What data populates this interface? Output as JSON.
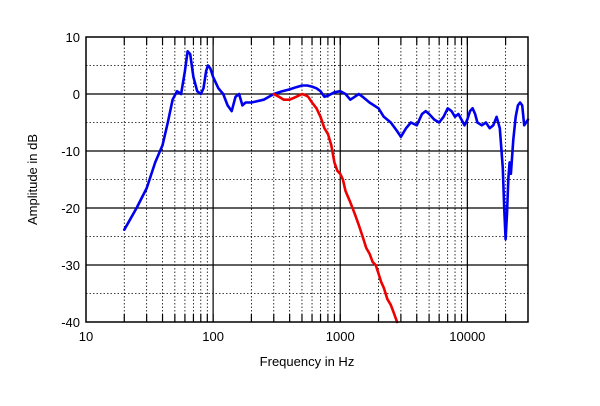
{
  "chart_data": {
    "type": "line",
    "xlabel": "Frequency in Hz",
    "ylabel": "Amplitude in dB",
    "x_scale": "log",
    "xlim": [
      10,
      30000
    ],
    "ylim": [
      -40,
      10
    ],
    "grid": true,
    "x_tick_labels": [
      "10",
      "100",
      "1000",
      "10000"
    ],
    "y_tick_labels": [
      "10",
      "0",
      "-10",
      "-20",
      "-30",
      "-40"
    ],
    "series": [
      {
        "color": "#0000ee",
        "points": [
          [
            20,
            -23.8
          ],
          [
            25,
            -20
          ],
          [
            30,
            -16.5
          ],
          [
            35,
            -12
          ],
          [
            40,
            -9
          ],
          [
            44,
            -5
          ],
          [
            48,
            -1
          ],
          [
            52,
            0.5
          ],
          [
            56,
            0
          ],
          [
            60,
            4
          ],
          [
            63,
            7.5
          ],
          [
            66,
            7
          ],
          [
            70,
            3
          ],
          [
            75,
            0.5
          ],
          [
            80,
            0
          ],
          [
            84,
            1
          ],
          [
            88,
            4
          ],
          [
            91,
            5
          ],
          [
            95,
            4.5
          ],
          [
            100,
            3
          ],
          [
            110,
            1
          ],
          [
            120,
            0
          ],
          [
            130,
            -2
          ],
          [
            140,
            -3
          ],
          [
            150,
            -0.5
          ],
          [
            160,
            0
          ],
          [
            170,
            -2
          ],
          [
            180,
            -1.5
          ],
          [
            200,
            -1.5
          ],
          [
            250,
            -1
          ],
          [
            300,
            0
          ],
          [
            350,
            0.5
          ],
          [
            400,
            0.8
          ],
          [
            450,
            1.2
          ],
          [
            500,
            1.5
          ],
          [
            550,
            1.5
          ],
          [
            600,
            1.3
          ],
          [
            650,
            1
          ],
          [
            700,
            0.5
          ],
          [
            750,
            -0.5
          ],
          [
            800,
            -0.3
          ],
          [
            900,
            0.3
          ],
          [
            1000,
            0.5
          ],
          [
            1100,
            0
          ],
          [
            1200,
            -1
          ],
          [
            1300,
            -0.5
          ],
          [
            1400,
            0
          ],
          [
            1500,
            -0.5
          ],
          [
            1700,
            -1.5
          ],
          [
            2000,
            -2.5
          ],
          [
            2200,
            -4
          ],
          [
            2500,
            -5
          ],
          [
            2800,
            -6.5
          ],
          [
            3000,
            -7.5
          ],
          [
            3300,
            -6
          ],
          [
            3600,
            -5
          ],
          [
            4000,
            -5.5
          ],
          [
            4400,
            -3.5
          ],
          [
            4700,
            -3
          ],
          [
            5000,
            -3.5
          ],
          [
            5500,
            -4.5
          ],
          [
            6000,
            -5
          ],
          [
            6500,
            -4
          ],
          [
            7000,
            -2.5
          ],
          [
            7500,
            -3
          ],
          [
            8000,
            -4
          ],
          [
            8500,
            -3.5
          ],
          [
            9000,
            -4.5
          ],
          [
            9500,
            -5.5
          ],
          [
            10000,
            -4.5
          ],
          [
            10500,
            -3
          ],
          [
            11000,
            -2.5
          ],
          [
            11500,
            -3.5
          ],
          [
            12000,
            -5
          ],
          [
            13000,
            -5.5
          ],
          [
            14000,
            -5
          ],
          [
            15000,
            -6
          ],
          [
            16000,
            -5.5
          ],
          [
            17000,
            -4
          ],
          [
            18000,
            -6
          ],
          [
            19000,
            -13
          ],
          [
            19500,
            -20
          ],
          [
            20000,
            -25.5
          ],
          [
            20500,
            -21
          ],
          [
            21000,
            -15
          ],
          [
            21500,
            -12
          ],
          [
            22000,
            -14
          ],
          [
            23000,
            -8
          ],
          [
            24000,
            -4
          ],
          [
            25000,
            -2
          ],
          [
            26000,
            -1.5
          ],
          [
            27000,
            -2
          ],
          [
            28000,
            -5.5
          ],
          [
            29000,
            -5
          ],
          [
            30000,
            -4.5
          ]
        ]
      },
      {
        "color": "#ee0000",
        "points": [
          [
            300,
            0
          ],
          [
            330,
            -0.5
          ],
          [
            360,
            -1
          ],
          [
            400,
            -1
          ],
          [
            450,
            -0.5
          ],
          [
            500,
            0
          ],
          [
            530,
            -0.2
          ],
          [
            560,
            -0.5
          ],
          [
            600,
            -1.5
          ],
          [
            650,
            -2.5
          ],
          [
            700,
            -4
          ],
          [
            750,
            -6
          ],
          [
            800,
            -7
          ],
          [
            850,
            -9
          ],
          [
            900,
            -12
          ],
          [
            950,
            -13.5
          ],
          [
            1000,
            -14
          ],
          [
            1050,
            -15
          ],
          [
            1100,
            -17
          ],
          [
            1150,
            -18
          ],
          [
            1200,
            -19
          ],
          [
            1300,
            -21
          ],
          [
            1400,
            -23
          ],
          [
            1500,
            -25
          ],
          [
            1600,
            -27
          ],
          [
            1700,
            -28
          ],
          [
            1800,
            -29.5
          ],
          [
            1900,
            -30
          ],
          [
            2000,
            -31.5
          ],
          [
            2100,
            -33
          ],
          [
            2200,
            -34
          ],
          [
            2350,
            -36
          ],
          [
            2500,
            -37
          ],
          [
            2650,
            -38.5
          ],
          [
            2800,
            -40
          ]
        ]
      }
    ]
  }
}
